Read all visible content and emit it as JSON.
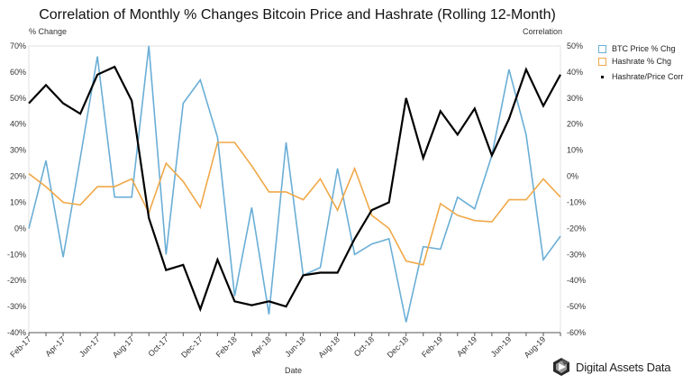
{
  "chart_data": {
    "type": "line",
    "title": "Correlation of Monthly % Changes Bitcoin Price and Hashrate (Rolling 12-Month)",
    "xlabel": "Date",
    "ylabel_left": "% Change",
    "ylabel_right": "Correlation",
    "ylim_left": [
      -40,
      70
    ],
    "ylim_right": [
      -60,
      50
    ],
    "yticks_left": [
      "70%",
      "60%",
      "50%",
      "40%",
      "30%",
      "20%",
      "10%",
      "0%",
      "-10%",
      "-20%",
      "-30%",
      "-40%"
    ],
    "yticks_right": [
      "50%",
      "40%",
      "30%",
      "20%",
      "10%",
      "0%",
      "-10%",
      "-20%",
      "-30%",
      "-40%",
      "-50%",
      "-60%"
    ],
    "x": [
      "Feb-17",
      "Mar-17",
      "Apr-17",
      "May-17",
      "Jun-17",
      "Jul-17",
      "Aug-17",
      "Sep-17",
      "Oct-17",
      "Nov-17",
      "Dec-17",
      "Jan-18",
      "Feb-18",
      "Mar-18",
      "Apr-18",
      "May-18",
      "Jun-18",
      "Jul-18",
      "Aug-18",
      "Sep-18",
      "Oct-18",
      "Nov-18",
      "Dec-18",
      "Jan-19",
      "Feb-19",
      "Mar-19",
      "Apr-19",
      "May-19",
      "Jun-19",
      "Jul-19",
      "Aug-19",
      "Sep-19"
    ],
    "xtick_labels": [
      "Feb-17",
      "Apr-17",
      "Jun-17",
      "Aug-17",
      "Oct-17",
      "Dec-17",
      "Feb-18",
      "Apr-18",
      "Jun-18",
      "Aug-18",
      "Oct-18",
      "Dec-18",
      "Feb-19",
      "Apr-19",
      "Jun-19",
      "Aug-19"
    ],
    "grid": false,
    "legend_position": "top-right",
    "series": [
      {
        "name": "BTC Price % Chg",
        "axis": "left",
        "color": "#6aaed6",
        "values": [
          0,
          26,
          -11,
          27,
          66,
          12,
          12,
          70,
          -10,
          48,
          57,
          35,
          -26,
          8,
          -33,
          33,
          -18,
          -15,
          23,
          -10,
          -6,
          -4,
          -36,
          -7,
          -8,
          12,
          7.5,
          28,
          61,
          36,
          -12,
          -3
        ]
      },
      {
        "name": "Hashrate % Chg",
        "axis": "left",
        "color": "#f0a848",
        "values": [
          21,
          16,
          10,
          9,
          16,
          16,
          19,
          6,
          25,
          18,
          8,
          33,
          33,
          24,
          14,
          14,
          11,
          19,
          7,
          23,
          5,
          0,
          -12.5,
          -14,
          9.5,
          5,
          3,
          2.5,
          11,
          11,
          19,
          12
        ]
      },
      {
        "name": "Hashrate/Price Corr",
        "axis": "right",
        "color": "#000000",
        "values": [
          28,
          35,
          28,
          24,
          39,
          42,
          29,
          -16,
          -36,
          -34,
          -51,
          -32,
          -48,
          -49.5,
          -48,
          -50,
          -38,
          -37,
          -37,
          -24,
          -13,
          -10,
          30,
          7,
          25,
          16,
          26,
          8,
          22,
          41,
          27,
          39
        ]
      }
    ]
  },
  "branding": {
    "logo_text": "Digital Assets Data",
    "logo_icon": "hexagon-play-icon"
  }
}
